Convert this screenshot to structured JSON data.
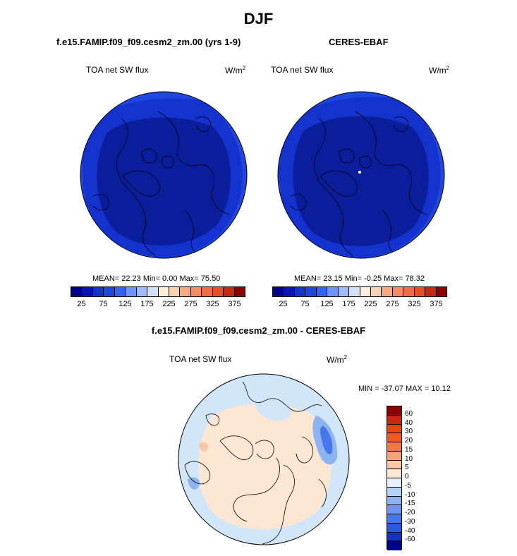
{
  "figure": {
    "title": "DJF",
    "bottom_title": "f.e15.FAMIP.f09_f09.cesm2_zm.00 - CERES-EBAF"
  },
  "chart_data": [
    {
      "type": "heatmap",
      "projection": "north-polar-stereographic",
      "title": "f.e15.FAMIP.f09_f09.cesm2_zm.00 (yrs 1-9)",
      "variable": "TOA net SW flux",
      "units_base": "W/m",
      "units_exp": "2",
      "stats": {
        "mean": "22.23",
        "min": "0.00",
        "max": "75.50"
      },
      "stats_text": "MEAN=  22.23  Min=   0.00  Max=  75.50",
      "colorbar": {
        "colors": [
          "#00008b",
          "#0a14b4",
          "#1432cd",
          "#1e46e1",
          "#3264f5",
          "#6e96fa",
          "#a0bef5",
          "#d2e1f5",
          "#fff0dc",
          "#fad2b4",
          "#f5aa82",
          "#f58c64",
          "#f06e46",
          "#e65028",
          "#c8280f",
          "#8c0000"
        ],
        "tick_labels": [
          "25",
          "75",
          "125",
          "175",
          "225",
          "275",
          "325",
          "375"
        ]
      },
      "field_colors": {
        "pole": "#0a1e9c",
        "mid": "#1432cd",
        "rim": "#1e46e1"
      }
    },
    {
      "type": "heatmap",
      "projection": "north-polar-stereographic",
      "title": "CERES-EBAF",
      "variable": "TOA net SW flux",
      "units_base": "W/m",
      "units_exp": "2",
      "stats": {
        "mean": "23.15",
        "min": "-0.25",
        "max": "78.32"
      },
      "stats_text": "MEAN=  23.15  Min=  -0.25  Max=  78.32",
      "colorbar": {
        "colors": [
          "#00008b",
          "#0a14b4",
          "#1432cd",
          "#1e46e1",
          "#3264f5",
          "#6e96fa",
          "#a0bef5",
          "#d2e1f5",
          "#fff0dc",
          "#fad2b4",
          "#f5aa82",
          "#f58c64",
          "#f06e46",
          "#e65028",
          "#c8280f",
          "#8c0000"
        ],
        "tick_labels": [
          "25",
          "75",
          "125",
          "175",
          "225",
          "275",
          "325",
          "375"
        ]
      },
      "field_colors": {
        "pole": "#0a1e9c",
        "mid": "#1432cd",
        "rim": "#1e46e1"
      }
    },
    {
      "type": "heatmap",
      "projection": "north-polar-stereographic",
      "title": "f.e15.FAMIP.f09_f09.cesm2_zm.00 - CERES-EBAF",
      "variable": "TOA net SW flux",
      "units_base": "W/m",
      "units_exp": "2",
      "stats": {
        "min": "-37.07",
        "max": "10.12"
      },
      "stats_text": "MIN = -37.07 MAX =  10.12",
      "colorbar": {
        "colors": [
          "#8c0000",
          "#c8280f",
          "#e64614",
          "#f05a1e",
          "#f57846",
          "#f5a078",
          "#fac8a5",
          "#fde6d2",
          "#e6f0fa",
          "#b4d2f5",
          "#8cb4f0",
          "#6e96f0",
          "#4678eb",
          "#285ae1",
          "#1432c8",
          "#00008b"
        ],
        "tick_labels": [
          "60",
          "40",
          "30",
          "20",
          "15",
          "10",
          "5",
          "0",
          "-5",
          "-10",
          "-15",
          "-20",
          "-30",
          "-40",
          "-60"
        ]
      },
      "field_colors": {
        "background": "#fde6d2",
        "light_blue": "#d2e6fa",
        "mid_blue": "#8cb4f0",
        "strong_blue": "#4678eb",
        "positive": "#fac8a5"
      }
    }
  ]
}
